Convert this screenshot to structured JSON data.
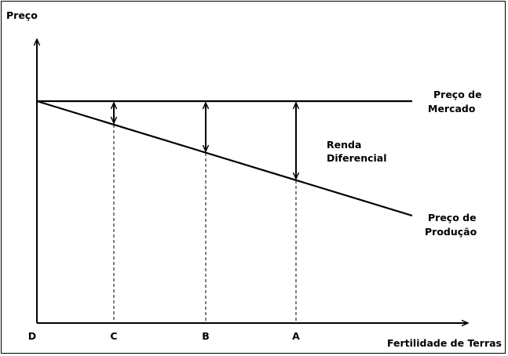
{
  "diagram": {
    "y_axis_label": "Preço",
    "x_axis_label": "Fertilidade de Terras",
    "origin_label": "D",
    "x_points": [
      "C",
      "B",
      "A"
    ],
    "market_price_label": [
      "Preço de",
      "Mercado"
    ],
    "production_price_label": [
      "Preço de",
      "Produção"
    ],
    "rent_label": [
      "Renda",
      "Diferencial"
    ],
    "colors": {
      "line": "#000000",
      "background": "#ffffff"
    }
  }
}
